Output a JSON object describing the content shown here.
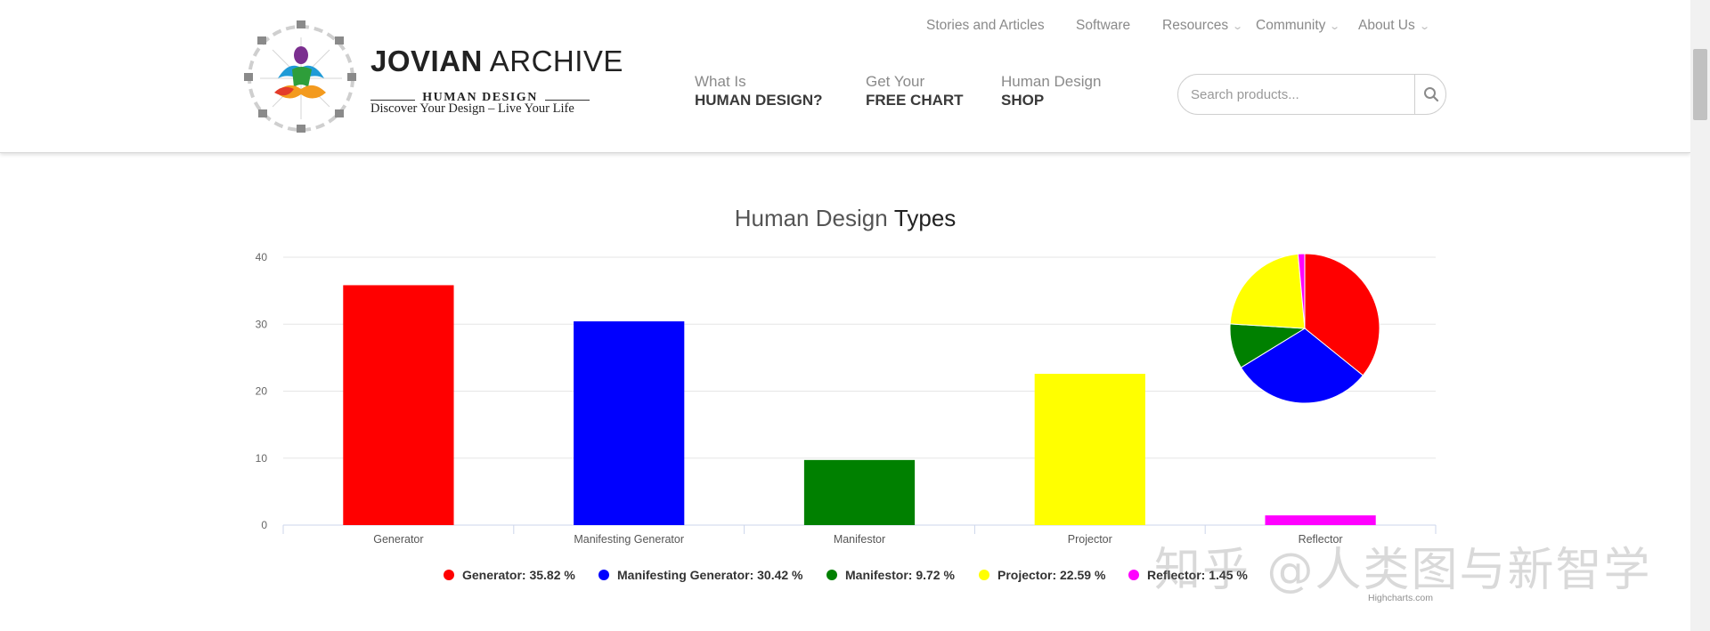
{
  "brand": {
    "title_bold": "JOVIAN",
    "title_light": " ARCHIVE",
    "subtitle": "HUMAN DESIGN",
    "tagline": "Discover Your Design – Live Your Life"
  },
  "top_nav": [
    {
      "label": "Stories and Articles",
      "has_dropdown": false
    },
    {
      "label": "Software",
      "has_dropdown": false
    },
    {
      "label": "Resources",
      "has_dropdown": true
    },
    {
      "label": "Community",
      "has_dropdown": true
    },
    {
      "label": "About Us",
      "has_dropdown": true
    }
  ],
  "main_nav": [
    {
      "line1": "What Is",
      "line2": "HUMAN DESIGN?"
    },
    {
      "line1": "Get Your",
      "line2": "FREE CHART"
    },
    {
      "line1": "Human Design",
      "line2": "SHOP"
    }
  ],
  "search": {
    "placeholder": "Search products...",
    "icon": "search-icon"
  },
  "chart_title": {
    "part1": "Human Design ",
    "part2": "Types"
  },
  "chart_data": [
    {
      "type": "bar",
      "title": "Human Design Types",
      "categories": [
        "Generator",
        "Manifesting Generator",
        "Manifestor",
        "Projector",
        "Reflector"
      ],
      "values": [
        35.82,
        30.42,
        9.72,
        22.59,
        1.45
      ],
      "colors": [
        "#ff0000",
        "#0000ff",
        "#008000",
        "#ffff00",
        "#ff00ff"
      ],
      "ylim": [
        0,
        40
      ],
      "yticks": [
        0,
        10,
        20,
        30,
        40
      ],
      "grid": true
    },
    {
      "type": "pie",
      "categories": [
        "Generator",
        "Manifesting Generator",
        "Manifestor",
        "Projector",
        "Reflector"
      ],
      "values": [
        35.82,
        30.42,
        9.72,
        22.59,
        1.45
      ],
      "colors": [
        "#ff0000",
        "#0000ff",
        "#008000",
        "#ffff00",
        "#ff00ff"
      ]
    }
  ],
  "legend": [
    {
      "label": "Generator: 35.82 %",
      "color": "#ff0000"
    },
    {
      "label": "Manifesting Generator: 30.42 %",
      "color": "#0000ff"
    },
    {
      "label": "Manifestor: 9.72 %",
      "color": "#008000"
    },
    {
      "label": "Projector: 22.59 %",
      "color": "#ffff00"
    },
    {
      "label": "Reflector: 1.45 %",
      "color": "#ff00ff"
    }
  ],
  "credits": "Highcharts.com",
  "watermark": "知乎 @人类图与新智学"
}
